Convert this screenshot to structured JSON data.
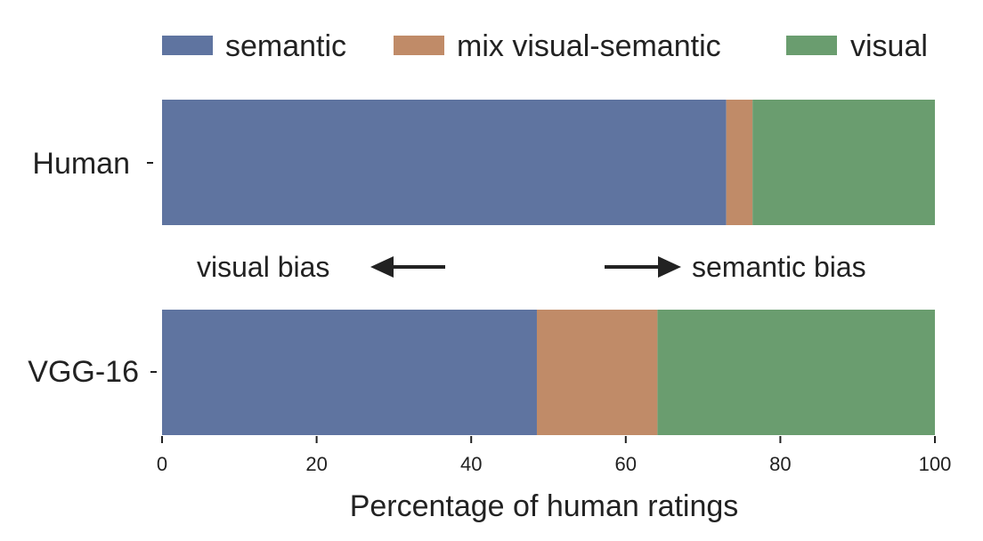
{
  "chart_data": {
    "type": "bar",
    "orientation": "horizontal",
    "stacked": true,
    "categories": [
      "Human",
      "VGG-16"
    ],
    "series": [
      {
        "name": "semantic",
        "values": [
          73.0,
          48.5
        ],
        "color": "#5f74a0"
      },
      {
        "name": "mix visual-semantic",
        "values": [
          3.4,
          15.6
        ],
        "color": "#c08b68"
      },
      {
        "name": "visual",
        "values": [
          23.6,
          35.9
        ],
        "color": "#6a9d6f"
      }
    ],
    "xlabel": "Percentage of human ratings",
    "ylabel": "",
    "xlim": [
      0,
      100
    ],
    "xticks": [
      "0",
      "20",
      "40",
      "60",
      "80",
      "100"
    ],
    "legend_position": "top",
    "grid": false,
    "annotations": {
      "left": "visual bias",
      "right": "semantic bias"
    },
    "axis_color": "#222222"
  }
}
